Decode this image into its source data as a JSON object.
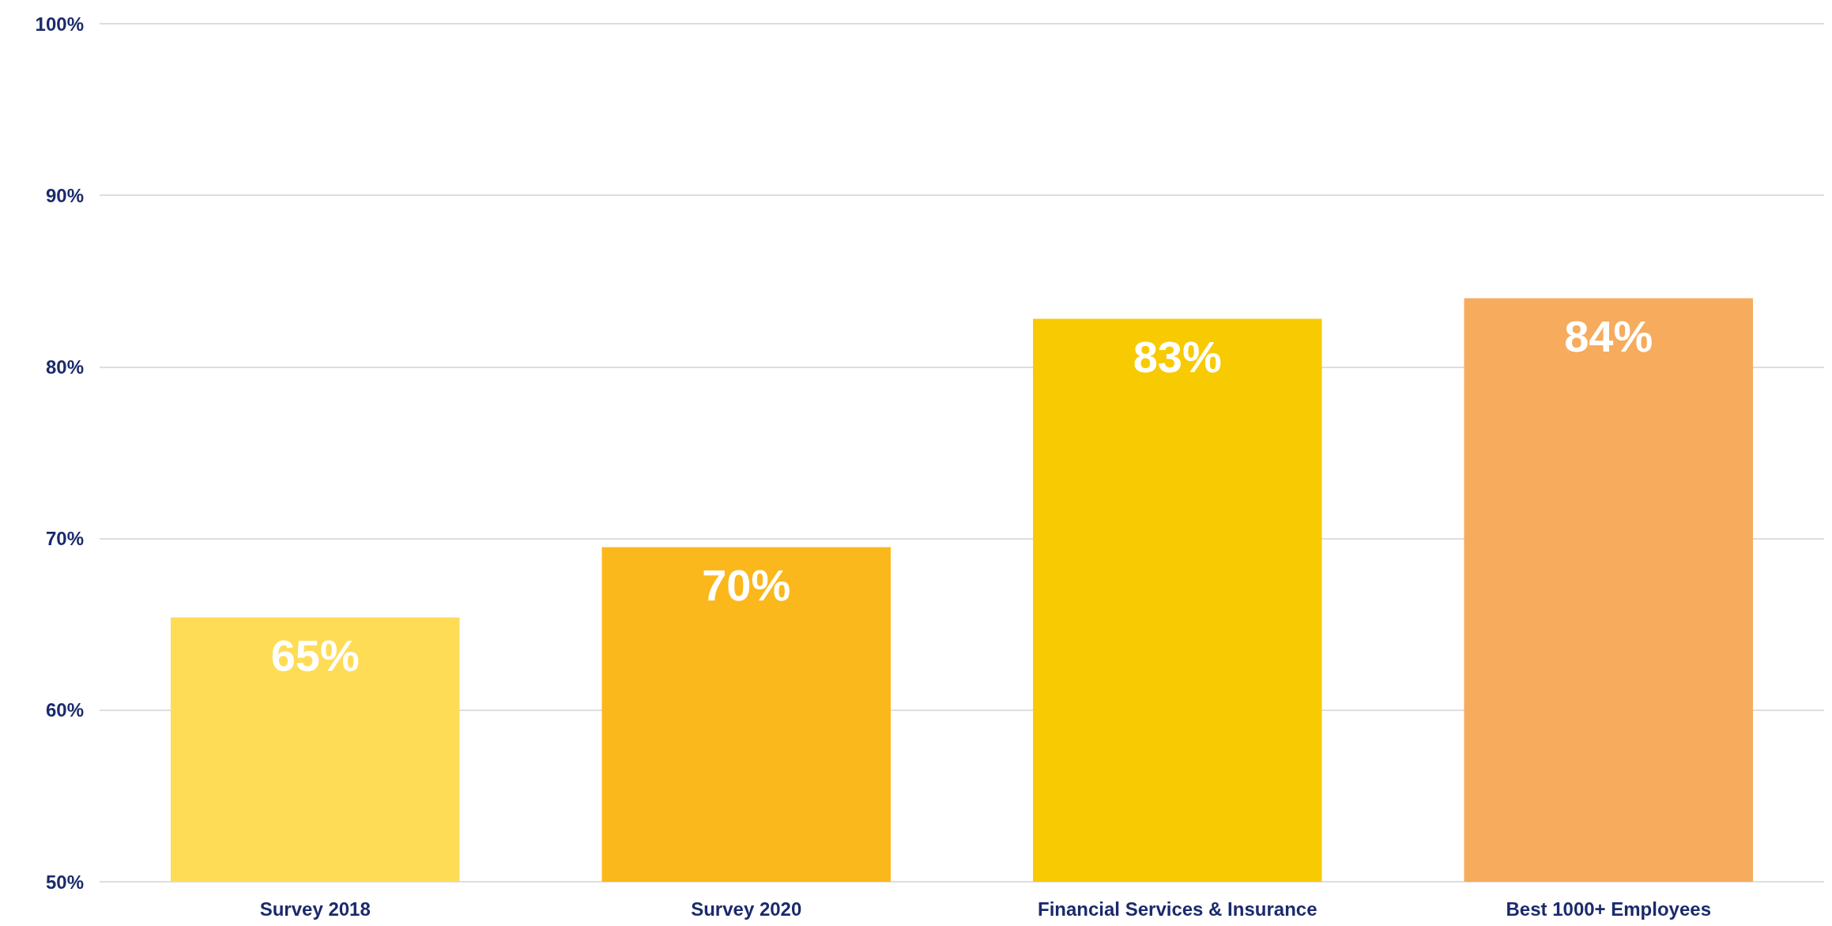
{
  "chart_data": {
    "type": "bar",
    "categories": [
      "Survey 2018",
      "Survey 2020",
      "Financial Services & Insurance",
      "Best 1000+ Employees"
    ],
    "values": [
      65.4,
      69.5,
      82.8,
      84.0
    ],
    "colors": [
      "#fedc56",
      "#fbb81c",
      "#f8ca02",
      "#f6ab5d"
    ],
    "value_labels": [
      "65%",
      "70%",
      "83%",
      "84%"
    ],
    "ylim": [
      50,
      100
    ],
    "yticks": [
      {
        "value": 50,
        "label": "50%"
      },
      {
        "value": 60,
        "label": "60%"
      },
      {
        "value": 70,
        "label": "70%"
      },
      {
        "value": 80,
        "label": "80%"
      },
      {
        "value": 90,
        "label": "90%"
      },
      {
        "value": 100,
        "label": "100%"
      }
    ],
    "grid": "y"
  }
}
